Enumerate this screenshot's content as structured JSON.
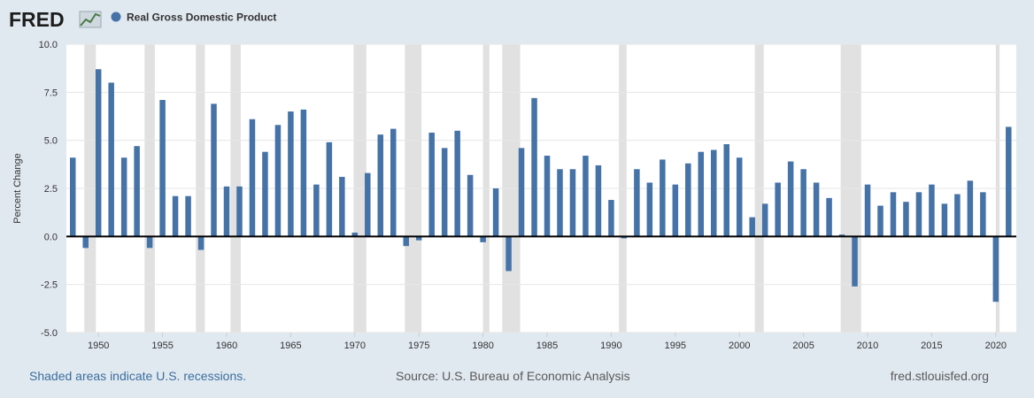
{
  "header": {
    "logo_text": "FRED",
    "legend_label": "Real Gross Domestic Product"
  },
  "colors": {
    "background": "#e1e9f0",
    "plot_background": "#ffffff",
    "bar": "#4572a7",
    "recession": "#e1e1e1",
    "zero_line": "#000000",
    "grid": "#e6e6e6",
    "footer_link": "#3b6f9e"
  },
  "footer": {
    "recession_note": "Shaded areas indicate U.S. recessions.",
    "source": "Source: U.S. Bureau of Economic Analysis",
    "site": "fred.stlouisfed.org"
  },
  "chart_data": {
    "type": "bar",
    "ylabel": "Percent Change",
    "ylim": [
      -5.0,
      10.0
    ],
    "yticks": [
      "-5.0",
      "-2.5",
      "0.0",
      "2.5",
      "5.0",
      "7.5",
      "10.0"
    ],
    "ytick_values": [
      -5,
      -2.5,
      0,
      2.5,
      5,
      7.5,
      10
    ],
    "xticks": [
      "1950",
      "1955",
      "1960",
      "1965",
      "1970",
      "1975",
      "1980",
      "1985",
      "1990",
      "1995",
      "2000",
      "2005",
      "2010",
      "2015",
      "2020"
    ],
    "xtick_values": [
      1950,
      1955,
      1960,
      1965,
      1970,
      1975,
      1980,
      1985,
      1990,
      1995,
      2000,
      2005,
      2010,
      2015,
      2020
    ],
    "x_range": [
      1947.5,
      2021.6
    ],
    "grid": true,
    "legend_position": "top-left",
    "recessions": [
      [
        1948.9,
        1949.8
      ],
      [
        1953.6,
        1954.4
      ],
      [
        1957.6,
        1958.3
      ],
      [
        1960.3,
        1961.1
      ],
      [
        1969.9,
        1970.9
      ],
      [
        1973.9,
        1975.2
      ],
      [
        1980.0,
        1980.5
      ],
      [
        1981.5,
        1982.9
      ],
      [
        1990.6,
        1991.2
      ],
      [
        2001.2,
        2001.9
      ],
      [
        2007.9,
        2009.5
      ],
      [
        2020.0,
        2020.3
      ]
    ],
    "series": [
      {
        "name": "Real Gross Domestic Product",
        "x": [
          1948,
          1949,
          1950,
          1951,
          1952,
          1953,
          1954,
          1955,
          1956,
          1957,
          1958,
          1959,
          1960,
          1961,
          1962,
          1963,
          1964,
          1965,
          1966,
          1967,
          1968,
          1969,
          1970,
          1971,
          1972,
          1973,
          1974,
          1975,
          1976,
          1977,
          1978,
          1979,
          1980,
          1981,
          1982,
          1983,
          1984,
          1985,
          1986,
          1987,
          1988,
          1989,
          1990,
          1991,
          1992,
          1993,
          1994,
          1995,
          1996,
          1997,
          1998,
          1999,
          2000,
          2001,
          2002,
          2003,
          2004,
          2005,
          2006,
          2007,
          2008,
          2009,
          2010,
          2011,
          2012,
          2013,
          2014,
          2015,
          2016,
          2017,
          2018,
          2019,
          2020,
          2021
        ],
        "values": [
          4.1,
          -0.6,
          8.7,
          8.0,
          4.1,
          4.7,
          -0.6,
          7.1,
          2.1,
          2.1,
          -0.7,
          6.9,
          2.6,
          2.6,
          6.1,
          4.4,
          5.8,
          6.5,
          6.6,
          2.7,
          4.9,
          3.1,
          0.2,
          3.3,
          5.3,
          5.6,
          -0.5,
          -0.2,
          5.4,
          4.6,
          5.5,
          3.2,
          -0.3,
          2.5,
          -1.8,
          4.6,
          7.2,
          4.2,
          3.5,
          3.5,
          4.2,
          3.7,
          1.9,
          -0.1,
          3.5,
          2.8,
          4.0,
          2.7,
          3.8,
          4.4,
          4.5,
          4.8,
          4.1,
          1.0,
          1.7,
          2.8,
          3.9,
          3.5,
          2.8,
          2.0,
          0.1,
          -2.6,
          2.7,
          1.6,
          2.3,
          1.8,
          2.3,
          2.7,
          1.7,
          2.2,
          2.9,
          2.3,
          -3.4,
          5.7
        ]
      }
    ]
  }
}
